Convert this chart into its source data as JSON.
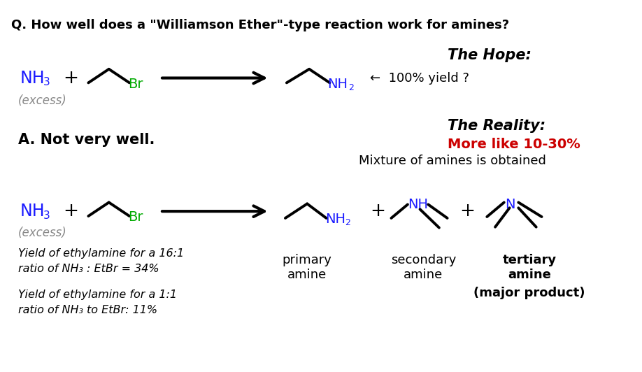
{
  "title": "Q. How well does a \"Williamson Ether\"-type reaction work for amines?",
  "answer": "A. Not very well.",
  "excess": "(excess)",
  "the_hope": "The Hope:",
  "hope_arrow_text": "←  100% yield ?",
  "the_reality": "The Reality:",
  "reality_percent": "More like 10-30%",
  "reality_mix": "Mixture of amines is obtained",
  "primary_label1": "primary",
  "primary_label2": "amine",
  "secondary_label1": "secondary",
  "secondary_label2": "amine",
  "tertiary_label1": "tertiary",
  "tertiary_label2": "amine",
  "major_label": "(major product)",
  "yield1": "Yield of ethylamine for a 16:1\nratio of NH₃ : EtBr = 34%",
  "yield2": "Yield of ethylamine for a 1:1\nratio of NH₃ to EtBr: 11%",
  "bg_color": "#ffffff",
  "text_black": "#000000",
  "text_blue": "#1a1aff",
  "text_green": "#00aa00",
  "text_red": "#cc0000",
  "text_gray": "#888888"
}
